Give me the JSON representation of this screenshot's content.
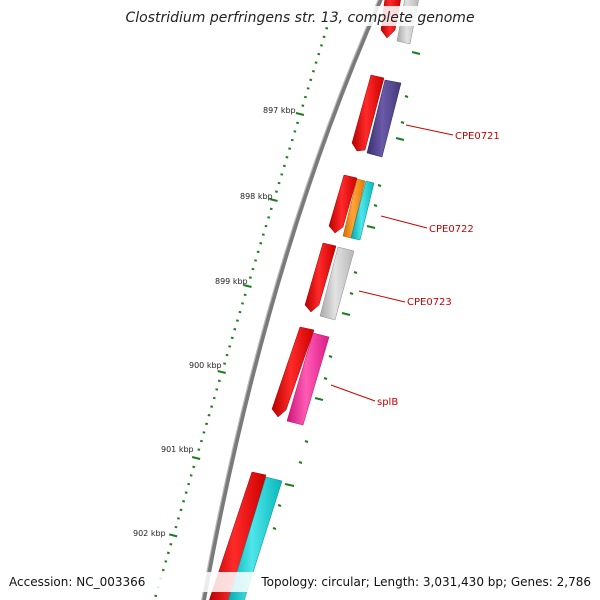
{
  "header": {
    "title": "Clostridium perfringens str. 13, complete genome"
  },
  "footer": {
    "accession": "Accession: NC_003366",
    "summary": "Topology: circular; Length: 3,031,430 bp; Genes: 2,786"
  },
  "scale": {
    "labels": [
      "897 kbp",
      "898 kbp",
      "899 kbp",
      "900 kbp",
      "901 kbp",
      "902 kbp"
    ]
  },
  "genes": {
    "labels": [
      "CPE0721",
      "CPE0722",
      "CPE0723",
      "splB"
    ]
  },
  "colors": {
    "backbone": "#7a7a7a",
    "ticks": "#1e7d1e",
    "label_red": "#cc0000",
    "forward_gene": "#ee0000",
    "purple_feature": "#55448f",
    "orange_feature": "#f08a12",
    "cyan_feature": "#10c8cc",
    "grey_feature": "#c4c4c4",
    "pink_feature": "#ee2b95"
  }
}
